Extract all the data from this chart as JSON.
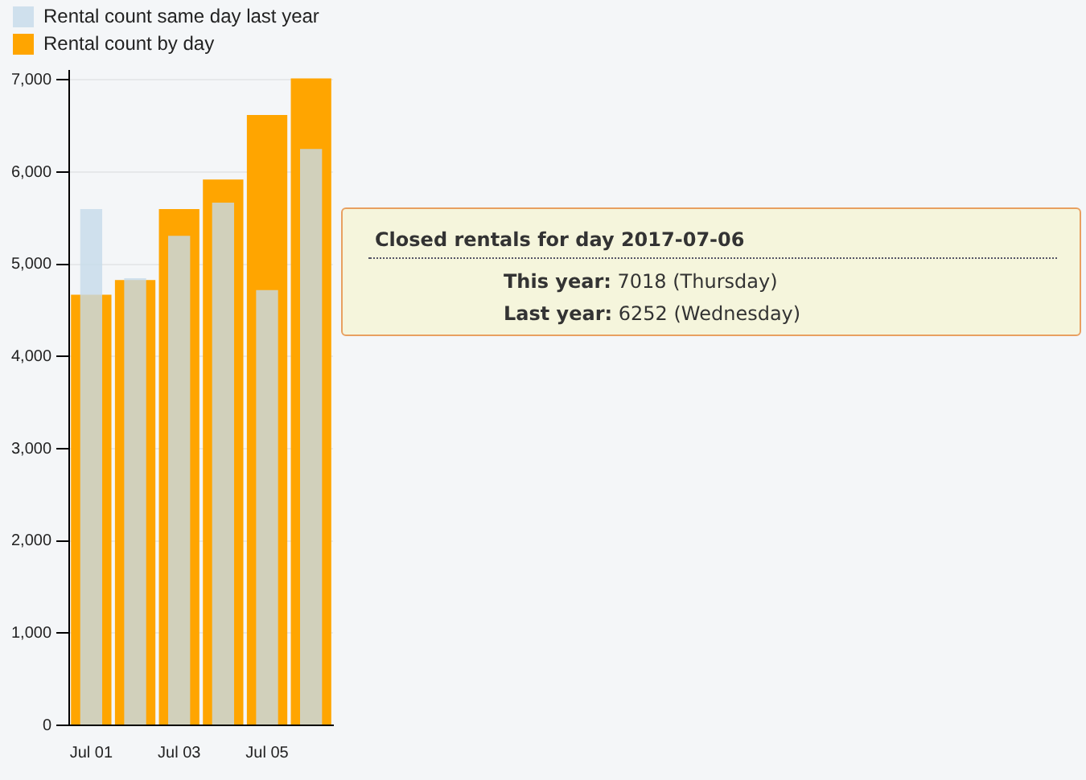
{
  "chart_data": {
    "type": "bar",
    "categories": [
      "Jul 01",
      null,
      "Jul 03",
      null,
      "Jul 05",
      null
    ],
    "series": [
      {
        "name": "Rental count by day",
        "color": "#ffa500",
        "values": [
          4670,
          4830,
          5600,
          5920,
          6620,
          7018
        ]
      },
      {
        "name": "Rental count same day last year",
        "color": "#c6dbea",
        "values": [
          5600,
          4850,
          5310,
          5670,
          4720,
          6252
        ]
      }
    ],
    "ylim": [
      0,
      7100
    ],
    "yticks": [
      {
        "value": 0,
        "label": "0"
      },
      {
        "value": 1000,
        "label": "1,000"
      },
      {
        "value": 2000,
        "label": "2,000"
      },
      {
        "value": 3000,
        "label": "3,000"
      },
      {
        "value": 4000,
        "label": "4,000"
      },
      {
        "value": 5000,
        "label": "5,000"
      },
      {
        "value": 6000,
        "label": "6,000"
      },
      {
        "value": 7000,
        "label": "7,000"
      }
    ],
    "grid": "y",
    "legend": "top left",
    "annotations": [
      "Closed rentals for day 2017-07-06",
      "This year: 7018 (Thursday)",
      "Last year: 6252 (Wednesday)"
    ]
  }
}
